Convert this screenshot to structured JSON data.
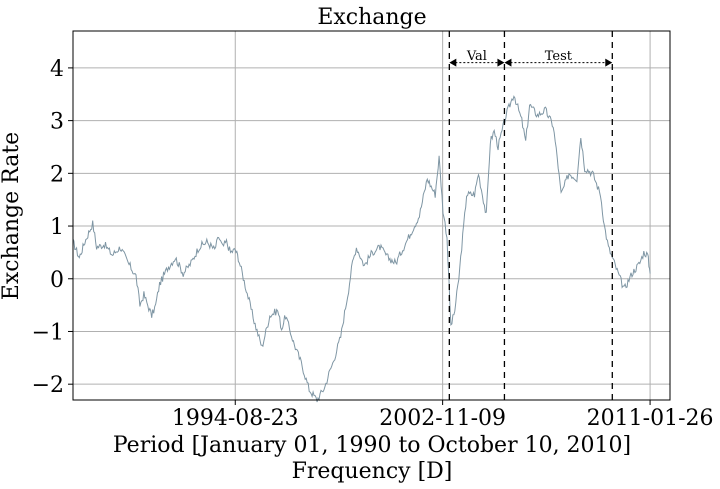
{
  "chart_data": {
    "type": "line",
    "title": "Exchange",
    "xlabel": "Period [January 01, 1990 to October 10, 2010]",
    "xlabel2": "Frequency [D]",
    "ylabel": "Exchange Rate",
    "xlim": [
      0,
      7583
    ],
    "ylim": [
      -2.3,
      4.7
    ],
    "x_ticks": [
      {
        "pos": 2061,
        "label": "1994-08-23"
      },
      {
        "pos": 4695,
        "label": "2002-11-09"
      },
      {
        "pos": 7330,
        "label": "2011-01-26"
      }
    ],
    "y_ticks": [
      {
        "value": -2,
        "label": "−2"
      },
      {
        "value": -1,
        "label": "−1"
      },
      {
        "value": 0,
        "label": "0"
      },
      {
        "value": 1,
        "label": "1"
      },
      {
        "value": 2,
        "label": "2"
      },
      {
        "value": 3,
        "label": "3"
      },
      {
        "value": 4,
        "label": "4"
      }
    ],
    "grid": true,
    "series": [
      {
        "name": "Exchange",
        "color": "#7f96a4",
        "x": [
          0,
          80,
          150,
          250,
          300,
          400,
          500,
          600,
          700,
          800,
          850,
          900,
          1000,
          1050,
          1100,
          1200,
          1300,
          1400,
          1500,
          1600,
          1700,
          1800,
          1850,
          1900,
          1950,
          2000,
          2061,
          2100,
          2200,
          2300,
          2400,
          2500,
          2600,
          2650,
          2700,
          2800,
          2900,
          3000,
          3100,
          3200,
          3250,
          3300,
          3400,
          3500,
          3550,
          3600,
          3700,
          3800,
          3900,
          4000,
          4100,
          4200,
          4300,
          4400,
          4500,
          4600,
          4650,
          4700,
          4750,
          4800,
          4850,
          4900,
          5000,
          5100,
          5150,
          5200,
          5250,
          5300,
          5350,
          5400,
          5500,
          5600,
          5700,
          5750,
          5800,
          5900,
          6000,
          6100,
          6150,
          6200,
          6300,
          6400,
          6450,
          6500,
          6600,
          6700,
          6750,
          6800,
          6900,
          7000,
          7100,
          7200,
          7250,
          7300,
          7330
        ],
        "y": [
          0.7,
          0.4,
          0.7,
          1.05,
          0.6,
          0.65,
          0.45,
          0.6,
          0.3,
          0.05,
          -0.5,
          -0.3,
          -0.7,
          -0.5,
          -0.1,
          0.2,
          0.4,
          0.1,
          0.3,
          0.6,
          0.7,
          0.55,
          0.8,
          0.6,
          0.7,
          0.5,
          0.55,
          0.4,
          -0.2,
          -0.8,
          -1.3,
          -0.7,
          -0.6,
          -0.95,
          -0.7,
          -1.2,
          -1.6,
          -2.1,
          -2.3,
          -2.05,
          -1.8,
          -1.6,
          -1.1,
          -0.2,
          0.3,
          0.6,
          0.25,
          0.5,
          0.6,
          0.4,
          0.3,
          0.6,
          0.9,
          1.2,
          1.9,
          1.6,
          2.3,
          1.3,
          0.8,
          -0.9,
          -0.6,
          0.0,
          1.6,
          1.6,
          2.0,
          1.6,
          1.2,
          2.6,
          2.8,
          2.5,
          3.1,
          3.5,
          3.0,
          2.6,
          3.3,
          3.1,
          3.2,
          2.9,
          2.3,
          1.6,
          2.0,
          1.9,
          2.7,
          2.1,
          2.0,
          1.6,
          1.0,
          0.6,
          0.2,
          -0.2,
          0.1,
          0.3,
          0.5,
          0.45,
          0.1
        ]
      }
    ],
    "split_markers": [
      4780,
      5480,
      6850
    ],
    "segments": [
      {
        "label": "Val",
        "from": 4780,
        "to": 5480
      },
      {
        "label": "Test",
        "from": 5480,
        "to": 6850
      }
    ],
    "segment_arrow_y": 4.1,
    "segment_label_y": 4.15
  }
}
